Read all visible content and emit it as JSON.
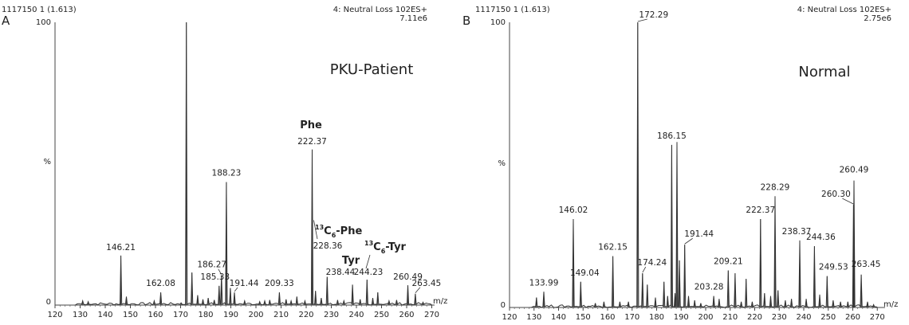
{
  "chart_data": [
    {
      "type": "line",
      "panel_label": "A",
      "header_left": "1117150 1 (1.613)",
      "header_right": [
        "4: Neutral Loss 102ES+",
        "7.11e6"
      ],
      "title": "PKU-Patient",
      "xlabel": "m/z",
      "ylabel": "%",
      "y_top_label": "100",
      "y_zero_label": "0",
      "xlim": [
        120,
        272
      ],
      "ylim": [
        0,
        100
      ],
      "xticks": [
        120,
        130,
        140,
        150,
        160,
        170,
        180,
        190,
        200,
        210,
        220,
        230,
        240,
        250,
        260,
        270
      ],
      "peaks": [
        {
          "x": 131.0,
          "y": 1.5
        },
        {
          "x": 133.2,
          "y": 1.2
        },
        {
          "x": 146.21,
          "y": 17.5,
          "label": "146.21"
        },
        {
          "x": 148.4,
          "y": 3.0
        },
        {
          "x": 159.5,
          "y": 1.5
        },
        {
          "x": 162.08,
          "y": 4.5,
          "label": "162.08"
        },
        {
          "x": 170.2,
          "y": 0.8
        },
        {
          "x": 172.3,
          "y": 100
        },
        {
          "x": 174.5,
          "y": 11.5
        },
        {
          "x": 176.8,
          "y": 3.5
        },
        {
          "x": 178.9,
          "y": 2.0
        },
        {
          "x": 181.0,
          "y": 2.5
        },
        {
          "x": 183.4,
          "y": 1.8
        },
        {
          "x": 185.33,
          "y": 6.8,
          "label": "185.33"
        },
        {
          "x": 186.27,
          "y": 10.5,
          "label": "186.27"
        },
        {
          "x": 188.23,
          "y": 43.5,
          "label": "188.23"
        },
        {
          "x": 189.8,
          "y": 6.0
        },
        {
          "x": 191.44,
          "y": 4.5,
          "label": "191.44"
        },
        {
          "x": 195.5,
          "y": 1.5
        },
        {
          "x": 201.5,
          "y": 1.2
        },
        {
          "x": 203.5,
          "y": 1.5
        },
        {
          "x": 205.5,
          "y": 1.8
        },
        {
          "x": 209.33,
          "y": 4.5,
          "label": "209.33"
        },
        {
          "x": 212.0,
          "y": 2.0
        },
        {
          "x": 214.0,
          "y": 1.5
        },
        {
          "x": 216.3,
          "y": 3.0
        },
        {
          "x": 219.5,
          "y": 1.5
        },
        {
          "x": 222.37,
          "y": 55.0,
          "label": "222.37"
        },
        {
          "x": 223.7,
          "y": 5.0
        },
        {
          "x": 226.0,
          "y": 2.5
        },
        {
          "x": 228.36,
          "y": 10.0
        },
        {
          "x": 232.5,
          "y": 1.8
        },
        {
          "x": 235.0,
          "y": 1.5
        },
        {
          "x": 238.44,
          "y": 7.2
        },
        {
          "x": 241.5,
          "y": 2.0
        },
        {
          "x": 244.23,
          "y": 9.0
        },
        {
          "x": 246.5,
          "y": 2.5
        },
        {
          "x": 248.5,
          "y": 4.5
        },
        {
          "x": 253.0,
          "y": 1.5
        },
        {
          "x": 256.0,
          "y": 1.8
        },
        {
          "x": 260.49,
          "y": 7.0,
          "label": "260.49"
        },
        {
          "x": 263.45,
          "y": 4.0,
          "label": "263.45"
        },
        {
          "x": 266.5,
          "y": 1.0
        }
      ],
      "annotations": [
        {
          "text": "Phe"
        },
        {
          "text": "13",
          "style": "sup"
        },
        {
          "text": "C",
          "style": "bold"
        },
        {
          "text": "6",
          "style": "sub"
        },
        {
          "text": "-Phe",
          "style": "bold"
        },
        {
          "text": "228.36"
        },
        {
          "text": "Tyr"
        },
        {
          "text": "238.44"
        },
        {
          "text": "13",
          "style": "sup"
        },
        {
          "text": "C",
          "style": "bold"
        },
        {
          "text": "6",
          "style": "sub"
        },
        {
          "text": "-Tyr",
          "style": "bold"
        },
        {
          "text": "244.23"
        }
      ]
    },
    {
      "type": "line",
      "panel_label": "B",
      "header_left": "1117150 1 (1.613)",
      "header_right": [
        "4: Neutral Loss 102ES+",
        "2.75e6"
      ],
      "title": "Normal",
      "xlabel": "m/z",
      "ylabel": "%",
      "y_top_label": "100",
      "y_zero_label": "0",
      "xlim": [
        120,
        272
      ],
      "ylim": [
        0,
        100
      ],
      "xticks": [
        120,
        130,
        140,
        150,
        160,
        170,
        180,
        190,
        200,
        210,
        220,
        230,
        240,
        250,
        260,
        270
      ],
      "peaks": [
        {
          "x": 131.0,
          "y": 3.5
        },
        {
          "x": 133.99,
          "y": 5.5,
          "label": "133.99"
        },
        {
          "x": 146.02,
          "y": 31.0,
          "label": "146.02"
        },
        {
          "x": 149.04,
          "y": 9.0,
          "label": "149.04"
        },
        {
          "x": 155.0,
          "y": 1.5
        },
        {
          "x": 158.5,
          "y": 2.0
        },
        {
          "x": 162.15,
          "y": 18.0,
          "label": "162.15"
        },
        {
          "x": 165.0,
          "y": 2.0
        },
        {
          "x": 168.5,
          "y": 2.0
        },
        {
          "x": 172.29,
          "y": 100,
          "label": "172.29"
        },
        {
          "x": 174.24,
          "y": 12.0,
          "label": "174.24"
        },
        {
          "x": 176.2,
          "y": 8.0
        },
        {
          "x": 179.5,
          "y": 3.5
        },
        {
          "x": 183.0,
          "y": 9.0
        },
        {
          "x": 184.5,
          "y": 4.0
        },
        {
          "x": 186.15,
          "y": 57.0,
          "label": "186.15"
        },
        {
          "x": 187.5,
          "y": 5.0
        },
        {
          "x": 188.3,
          "y": 58.0
        },
        {
          "x": 189.3,
          "y": 16.5
        },
        {
          "x": 191.44,
          "y": 22.0,
          "label": "191.44"
        },
        {
          "x": 193.0,
          "y": 4.0
        },
        {
          "x": 195.5,
          "y": 2.5
        },
        {
          "x": 198.0,
          "y": 1.5
        },
        {
          "x": 203.28,
          "y": 4.0,
          "label": "203.28"
        },
        {
          "x": 205.5,
          "y": 3.0
        },
        {
          "x": 209.21,
          "y": 13.0,
          "label": "209.21"
        },
        {
          "x": 212.0,
          "y": 12.0
        },
        {
          "x": 214.5,
          "y": 2.0
        },
        {
          "x": 216.5,
          "y": 10.0
        },
        {
          "x": 219.0,
          "y": 2.0
        },
        {
          "x": 222.37,
          "y": 31.0,
          "label": "222.37"
        },
        {
          "x": 224.0,
          "y": 5.0
        },
        {
          "x": 226.5,
          "y": 4.0
        },
        {
          "x": 228.29,
          "y": 39.0,
          "label": "228.29"
        },
        {
          "x": 229.5,
          "y": 6.0
        },
        {
          "x": 232.5,
          "y": 2.5
        },
        {
          "x": 235.0,
          "y": 3.0
        },
        {
          "x": 238.37,
          "y": 23.5,
          "label": "238.37"
        },
        {
          "x": 241.0,
          "y": 3.0
        },
        {
          "x": 244.36,
          "y": 21.5,
          "label": "244.36"
        },
        {
          "x": 246.5,
          "y": 4.5
        },
        {
          "x": 249.53,
          "y": 11.0,
          "label": "249.53"
        },
        {
          "x": 252.0,
          "y": 2.5
        },
        {
          "x": 255.0,
          "y": 2.0
        },
        {
          "x": 258.0,
          "y": 2.0
        },
        {
          "x": 260.3,
          "y": 36.0,
          "label": "260.30"
        },
        {
          "x": 260.49,
          "y": 44.5,
          "label": "260.49"
        },
        {
          "x": 263.45,
          "y": 11.5,
          "label": "263.45"
        },
        {
          "x": 266.0,
          "y": 2.0
        },
        {
          "x": 268.5,
          "y": 1.0
        }
      ]
    }
  ]
}
